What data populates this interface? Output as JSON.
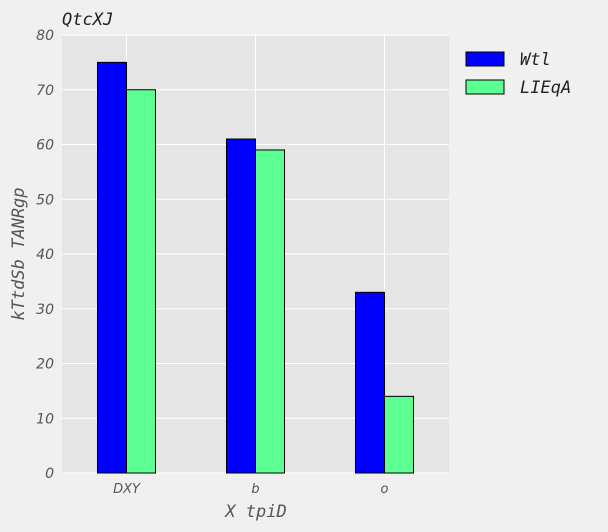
{
  "chart_data": {
    "type": "bar",
    "title": "QtcXJ",
    "xlabel": "X tpiD",
    "ylabel": "kTtdSb TANRgp",
    "categories": [
      "DXY",
      "b",
      "o"
    ],
    "series": [
      {
        "name": "Wtl",
        "values": [
          75,
          61,
          33
        ],
        "color": "#0000ff"
      },
      {
        "name": "LIEqA",
        "values": [
          70,
          59,
          14
        ],
        "color": "#5cff91"
      }
    ],
    "ylim": [
      0,
      80
    ],
    "yticks": [
      0,
      10,
      20,
      30,
      40,
      50,
      60,
      70,
      80
    ],
    "grid": true,
    "legend_position": "outside-right-top"
  }
}
